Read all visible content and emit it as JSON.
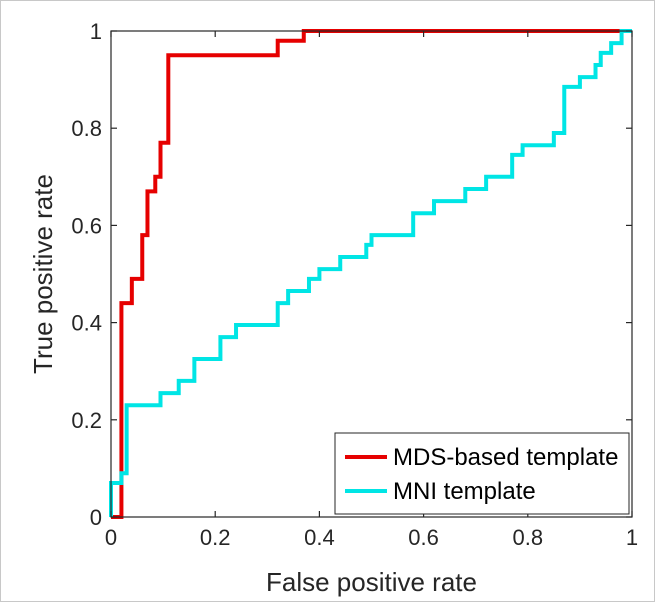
{
  "chart_data": {
    "type": "line",
    "title": "",
    "xlabel": "False positive rate",
    "ylabel": "True positive rate",
    "xlim": [
      0,
      1
    ],
    "ylim": [
      0,
      1
    ],
    "x_ticks": [
      {
        "value": 0,
        "label": "0"
      },
      {
        "value": 0.2,
        "label": "0.2"
      },
      {
        "value": 0.4,
        "label": "0.4"
      },
      {
        "value": 0.6,
        "label": "0.6"
      },
      {
        "value": 0.8,
        "label": "0.8"
      },
      {
        "value": 1,
        "label": "1"
      }
    ],
    "y_ticks": [
      {
        "value": 0,
        "label": "0"
      },
      {
        "value": 0.2,
        "label": "0.2"
      },
      {
        "value": 0.4,
        "label": "0.4"
      },
      {
        "value": 0.6,
        "label": "0.6"
      },
      {
        "value": 0.8,
        "label": "0.8"
      },
      {
        "value": 1,
        "label": "1"
      }
    ],
    "grid": false,
    "legend_position": "bottom-right",
    "series": [
      {
        "name": "MDS-based template",
        "color": "#e60000",
        "points": [
          [
            0.0,
            0.0
          ],
          [
            0.02,
            0.0
          ],
          [
            0.02,
            0.09
          ],
          [
            0.02,
            0.44
          ],
          [
            0.04,
            0.44
          ],
          [
            0.04,
            0.49
          ],
          [
            0.06,
            0.49
          ],
          [
            0.06,
            0.58
          ],
          [
            0.07,
            0.58
          ],
          [
            0.07,
            0.67
          ],
          [
            0.085,
            0.67
          ],
          [
            0.085,
            0.7
          ],
          [
            0.095,
            0.7
          ],
          [
            0.095,
            0.77
          ],
          [
            0.11,
            0.77
          ],
          [
            0.11,
            0.95
          ],
          [
            0.32,
            0.95
          ],
          [
            0.32,
            0.98
          ],
          [
            0.37,
            0.98
          ],
          [
            0.37,
            1.0
          ],
          [
            1.0,
            1.0
          ]
        ]
      },
      {
        "name": "MNI template",
        "color": "#00e5e5",
        "points": [
          [
            0.0,
            0.0
          ],
          [
            0.0,
            0.07
          ],
          [
            0.02,
            0.07
          ],
          [
            0.02,
            0.09
          ],
          [
            0.03,
            0.09
          ],
          [
            0.03,
            0.23
          ],
          [
            0.095,
            0.23
          ],
          [
            0.095,
            0.255
          ],
          [
            0.13,
            0.255
          ],
          [
            0.13,
            0.28
          ],
          [
            0.16,
            0.28
          ],
          [
            0.16,
            0.325
          ],
          [
            0.21,
            0.325
          ],
          [
            0.21,
            0.37
          ],
          [
            0.24,
            0.37
          ],
          [
            0.24,
            0.395
          ],
          [
            0.32,
            0.395
          ],
          [
            0.32,
            0.44
          ],
          [
            0.34,
            0.44
          ],
          [
            0.34,
            0.465
          ],
          [
            0.38,
            0.465
          ],
          [
            0.38,
            0.49
          ],
          [
            0.4,
            0.49
          ],
          [
            0.4,
            0.51
          ],
          [
            0.44,
            0.51
          ],
          [
            0.44,
            0.535
          ],
          [
            0.49,
            0.535
          ],
          [
            0.49,
            0.56
          ],
          [
            0.5,
            0.56
          ],
          [
            0.5,
            0.58
          ],
          [
            0.58,
            0.58
          ],
          [
            0.58,
            0.625
          ],
          [
            0.62,
            0.625
          ],
          [
            0.62,
            0.65
          ],
          [
            0.68,
            0.65
          ],
          [
            0.68,
            0.675
          ],
          [
            0.72,
            0.675
          ],
          [
            0.72,
            0.7
          ],
          [
            0.77,
            0.7
          ],
          [
            0.77,
            0.745
          ],
          [
            0.79,
            0.745
          ],
          [
            0.79,
            0.765
          ],
          [
            0.85,
            0.765
          ],
          [
            0.85,
            0.79
          ],
          [
            0.87,
            0.79
          ],
          [
            0.87,
            0.885
          ],
          [
            0.9,
            0.885
          ],
          [
            0.9,
            0.905
          ],
          [
            0.93,
            0.905
          ],
          [
            0.93,
            0.93
          ],
          [
            0.94,
            0.93
          ],
          [
            0.94,
            0.955
          ],
          [
            0.96,
            0.955
          ],
          [
            0.96,
            0.975
          ],
          [
            0.98,
            0.975
          ],
          [
            0.98,
            1.0
          ],
          [
            1.0,
            1.0
          ]
        ]
      }
    ]
  }
}
